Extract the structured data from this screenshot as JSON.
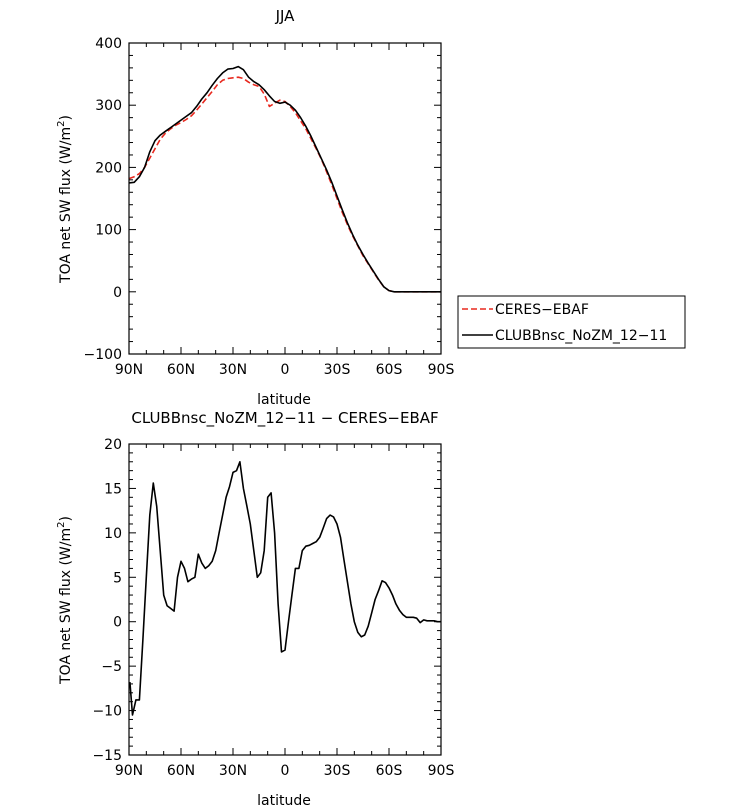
{
  "chart_data": [
    {
      "type": "line",
      "title": "JJA",
      "xlabel": "latitude",
      "ylabel_main": "TOA net SW flux (W/m",
      "ylabel_sup": "2",
      "ylabel_end": ")",
      "xlim": [
        90,
        -90
      ],
      "ylim": [
        -100,
        400
      ],
      "xticks": [
        90,
        60,
        30,
        0,
        -30,
        -60,
        -90
      ],
      "xtick_labels": [
        "90N",
        "60N",
        "30N",
        "0",
        "30S",
        "60S",
        "90S"
      ],
      "yticks": [
        -100,
        0,
        100,
        200,
        300,
        400
      ],
      "ytick_labels": [
        "−100",
        "0",
        "100",
        "200",
        "300",
        "400"
      ],
      "legend_position": "right",
      "series": [
        {
          "name": "CERES−EBAF",
          "color": "#e8281e",
          "style": "dashed",
          "x": [
            90,
            87,
            84,
            81,
            78,
            75,
            72,
            69,
            66,
            63,
            60,
            57,
            54,
            51,
            48,
            45,
            42,
            39,
            36,
            33,
            30,
            27,
            24,
            21,
            18,
            15,
            12,
            9,
            6,
            3,
            0,
            -3,
            -6,
            -9,
            -12,
            -15,
            -18,
            -21,
            -24,
            -27,
            -30,
            -33,
            -36,
            -39,
            -42,
            -45,
            -48,
            -51,
            -54,
            -57,
            -60,
            -63,
            -66,
            -69,
            -72,
            -75,
            -78,
            -81,
            -84,
            -87,
            -90
          ],
          "y": [
            182,
            185,
            190,
            200,
            215,
            230,
            245,
            255,
            262,
            268,
            272,
            277,
            283,
            292,
            302,
            312,
            322,
            333,
            340,
            343,
            344,
            345,
            343,
            337,
            333,
            330,
            318,
            298,
            303,
            308,
            306,
            298,
            288,
            275,
            262,
            246,
            230,
            213,
            193,
            172,
            150,
            128,
            108,
            90,
            74,
            58,
            45,
            32,
            19,
            8,
            2,
            0,
            0,
            0,
            0,
            0,
            0,
            0,
            0,
            0,
            0
          ]
        },
        {
          "name": "CLUBBnsc_NoZM_12−11",
          "color": "#000000",
          "style": "solid",
          "x": [
            90,
            87,
            84,
            81,
            78,
            75,
            72,
            69,
            66,
            63,
            60,
            57,
            54,
            51,
            48,
            45,
            42,
            39,
            36,
            33,
            30,
            27,
            24,
            21,
            18,
            15,
            12,
            9,
            6,
            3,
            0,
            -3,
            -6,
            -9,
            -12,
            -15,
            -18,
            -21,
            -24,
            -27,
            -30,
            -33,
            -36,
            -39,
            -42,
            -45,
            -48,
            -51,
            -54,
            -57,
            -60,
            -63,
            -66,
            -69,
            -72,
            -75,
            -78,
            -81,
            -84,
            -87,
            -90
          ],
          "y": [
            175,
            176,
            185,
            200,
            225,
            243,
            252,
            258,
            264,
            270,
            276,
            282,
            288,
            298,
            310,
            320,
            332,
            343,
            352,
            358,
            359,
            362,
            357,
            345,
            338,
            333,
            325,
            315,
            306,
            303,
            305,
            300,
            292,
            280,
            266,
            250,
            232,
            214,
            196,
            176,
            154,
            132,
            111,
            92,
            75,
            60,
            46,
            33,
            20,
            8,
            2,
            0,
            0,
            0,
            0,
            0,
            0,
            0,
            0,
            0,
            0
          ]
        }
      ]
    },
    {
      "type": "line",
      "title": "CLUBBnsc_NoZM_12−11 − CERES−EBAF",
      "xlabel": "latitude",
      "ylabel_main": "TOA net SW flux (W/m",
      "ylabel_sup": "2",
      "ylabel_end": ")",
      "xlim": [
        90,
        -90
      ],
      "ylim": [
        -15,
        20
      ],
      "xticks": [
        90,
        60,
        30,
        0,
        -30,
        -60,
        -90
      ],
      "xtick_labels": [
        "90N",
        "60N",
        "30N",
        "0",
        "30S",
        "60S",
        "90S"
      ],
      "yticks": [
        -15,
        -10,
        -5,
        0,
        5,
        10,
        15,
        20
      ],
      "ytick_labels": [
        "−15",
        "−10",
        "−5",
        "0",
        "5",
        "10",
        "15",
        "20"
      ],
      "series": [
        {
          "color": "#000000",
          "style": "solid",
          "x": [
            89.5,
            88,
            86,
            84,
            82,
            80,
            78,
            76,
            74,
            72,
            70,
            68,
            66,
            64,
            62,
            60,
            58,
            56,
            54,
            52,
            50,
            48,
            46,
            44,
            42,
            40,
            38,
            36,
            34,
            32,
            30,
            28,
            26,
            24,
            22,
            20,
            18,
            16,
            14,
            12,
            10,
            8,
            6,
            4,
            2,
            0,
            -2,
            -4,
            -6,
            -8,
            -10,
            -12,
            -14,
            -16,
            -18,
            -20,
            -22,
            -24,
            -26,
            -28,
            -30,
            -32,
            -34,
            -36,
            -38,
            -40,
            -42,
            -44,
            -46,
            -48,
            -50,
            -52,
            -54,
            -56,
            -58,
            -60,
            -62,
            -64,
            -66,
            -68,
            -70,
            -72,
            -74,
            -76,
            -78,
            -80,
            -82,
            -84,
            -86,
            -88,
            -90
          ],
          "y": [
            -6.8,
            -10.5,
            -8.8,
            -8.8,
            -2,
            5,
            12,
            15.6,
            13,
            8,
            3,
            1.8,
            1.5,
            1.2,
            5,
            6.8,
            6,
            4.5,
            4.8,
            5,
            7.6,
            6.6,
            6,
            6.3,
            6.8,
            8,
            10,
            12,
            14,
            15.2,
            16.8,
            17,
            18,
            15,
            13,
            11,
            8,
            5,
            5.5,
            8,
            14,
            14.5,
            10,
            2,
            -3.4,
            -3.2,
            0,
            3,
            6,
            6,
            8,
            8.5,
            8.6,
            8.8,
            9,
            9.5,
            10.5,
            11.6,
            12,
            11.8,
            11,
            9.5,
            7,
            4.5,
            2,
            0,
            -1.2,
            -1.7,
            -1.5,
            -0.5,
            1,
            2.5,
            3.5,
            4.6,
            4.4,
            3.8,
            3,
            2,
            1.3,
            0.8,
            0.5,
            0.5,
            0.5,
            0.4,
            -0.1,
            0.2,
            0.1,
            0.1,
            0.1,
            0,
            0
          ]
        }
      ]
    }
  ]
}
